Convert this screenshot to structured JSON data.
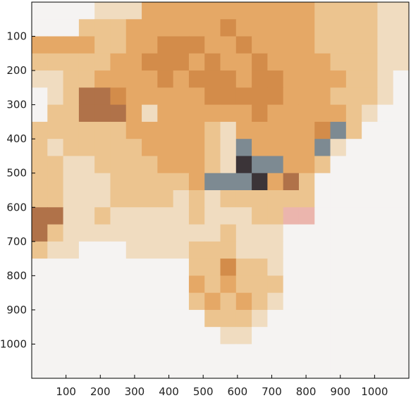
{
  "chart_data": {
    "type": "heatmap",
    "title": "",
    "xlabel": "",
    "ylabel": "",
    "xlim": [
      0,
      1100
    ],
    "ylim": [
      1100,
      0
    ],
    "grid": false,
    "x_ticks": [
      100,
      200,
      300,
      400,
      500,
      600,
      700,
      800,
      900,
      1000
    ],
    "y_ticks": [
      100,
      200,
      300,
      400,
      500,
      600,
      700,
      800,
      900,
      1000
    ],
    "x_tick_labels": [
      "100",
      "200",
      "300",
      "400",
      "500",
      "600",
      "700",
      "800",
      "900",
      "1000"
    ],
    "y_tick_labels": [
      "100",
      "200",
      "300",
      "400",
      "500",
      "600",
      "700",
      "800",
      "900",
      "1000"
    ],
    "image_description": "pixelated close-up of an orange tabby cat face on a white background",
    "palette": {
      "white": "#f5f3f2",
      "cream": "#f0dcc0",
      "light_orange": "#ecc48f",
      "orange": "#e5a866",
      "dark_orange": "#d38c4a",
      "brown": "#b07249",
      "eye_gray": "#7d8a92",
      "eye_dark": "#3b3438",
      "nose_pink": "#ebb5ad"
    },
    "cells": [
      [
        "W",
        "W",
        "W",
        "W",
        "C",
        "C",
        "C",
        "O",
        "O",
        "O",
        "O",
        "O",
        "O",
        "O",
        "O",
        "O",
        "O",
        "O",
        "L",
        "L",
        "L",
        "L",
        "C",
        "C"
      ],
      [
        "W",
        "W",
        "W",
        "L",
        "L",
        "L",
        "O",
        "O",
        "O",
        "O",
        "O",
        "O",
        "D",
        "O",
        "O",
        "O",
        "O",
        "O",
        "L",
        "L",
        "L",
        "L",
        "C",
        "C"
      ],
      [
        "O",
        "O",
        "O",
        "O",
        "L",
        "L",
        "O",
        "O",
        "D",
        "D",
        "D",
        "O",
        "O",
        "D",
        "O",
        "O",
        "O",
        "O",
        "L",
        "L",
        "L",
        "L",
        "C",
        "C"
      ],
      [
        "L",
        "L",
        "L",
        "L",
        "L",
        "O",
        "O",
        "D",
        "D",
        "D",
        "O",
        "D",
        "O",
        "O",
        "D",
        "O",
        "O",
        "O",
        "O",
        "L",
        "L",
        "L",
        "C",
        "C"
      ],
      [
        "C",
        "C",
        "L",
        "L",
        "O",
        "O",
        "O",
        "O",
        "D",
        "O",
        "D",
        "D",
        "D",
        "O",
        "D",
        "D",
        "O",
        "O",
        "O",
        "O",
        "L",
        "L",
        "C",
        "W"
      ],
      [
        "W",
        "C",
        "L",
        "B",
        "B",
        "D",
        "O",
        "O",
        "O",
        "O",
        "O",
        "D",
        "D",
        "D",
        "D",
        "D",
        "O",
        "O",
        "O",
        "L",
        "L",
        "L",
        "C",
        "W"
      ],
      [
        "W",
        "L",
        "L",
        "B",
        "B",
        "B",
        "O",
        "C",
        "O",
        "O",
        "O",
        "O",
        "O",
        "O",
        "D",
        "O",
        "O",
        "O",
        "O",
        "O",
        "L",
        "C",
        "W",
        "W"
      ],
      [
        "L",
        "L",
        "L",
        "L",
        "L",
        "L",
        "O",
        "O",
        "O",
        "O",
        "O",
        "L",
        "C",
        "O",
        "O",
        "O",
        "O",
        "O",
        "D",
        "G",
        "L",
        "W",
        "W",
        "W"
      ],
      [
        "L",
        "C",
        "L",
        "L",
        "L",
        "L",
        "L",
        "O",
        "O",
        "O",
        "O",
        "L",
        "C",
        "G",
        "O",
        "O",
        "O",
        "O",
        "G",
        "C",
        "W",
        "W",
        "W",
        "W"
      ],
      [
        "L",
        "L",
        "C",
        "C",
        "L",
        "L",
        "L",
        "L",
        "O",
        "O",
        "O",
        "L",
        "C",
        "K",
        "G",
        "G",
        "O",
        "O",
        "L",
        "W",
        "W",
        "W",
        "W",
        "W"
      ],
      [
        "L",
        "L",
        "C",
        "C",
        "C",
        "L",
        "L",
        "L",
        "L",
        "L",
        "O",
        "G",
        "G",
        "G",
        "K",
        "O",
        "B",
        "L",
        "W",
        "W",
        "W",
        "W",
        "W",
        "W"
      ],
      [
        "L",
        "L",
        "C",
        "C",
        "C",
        "L",
        "L",
        "L",
        "L",
        "C",
        "L",
        "C",
        "L",
        "L",
        "L",
        "L",
        "L",
        "L",
        "W",
        "W",
        "W",
        "W",
        "W",
        "W"
      ],
      [
        "B",
        "B",
        "C",
        "C",
        "L",
        "C",
        "C",
        "C",
        "C",
        "C",
        "L",
        "C",
        "C",
        "C",
        "L",
        "L",
        "P",
        "P",
        "W",
        "W",
        "W",
        "W",
        "W",
        "W"
      ],
      [
        "B",
        "L",
        "C",
        "C",
        "C",
        "C",
        "C",
        "C",
        "C",
        "C",
        "C",
        "C",
        "L",
        "C",
        "C",
        "C",
        "W",
        "W",
        "W",
        "W",
        "W",
        "W",
        "W",
        "W"
      ],
      [
        "L",
        "C",
        "C",
        "W",
        "W",
        "W",
        "C",
        "C",
        "C",
        "C",
        "L",
        "L",
        "L",
        "C",
        "C",
        "C",
        "W",
        "W",
        "W",
        "W",
        "W",
        "W",
        "W",
        "W"
      ],
      [
        "W",
        "W",
        "W",
        "W",
        "W",
        "W",
        "W",
        "W",
        "W",
        "W",
        "L",
        "L",
        "D",
        "L",
        "L",
        "C",
        "W",
        "W",
        "W",
        "W",
        "W",
        "W",
        "W",
        "W"
      ],
      [
        "W",
        "W",
        "W",
        "W",
        "W",
        "W",
        "W",
        "W",
        "W",
        "W",
        "O",
        "L",
        "O",
        "L",
        "L",
        "L",
        "W",
        "W",
        "W",
        "W",
        "W",
        "W",
        "W",
        "W"
      ],
      [
        "W",
        "W",
        "W",
        "W",
        "W",
        "W",
        "W",
        "W",
        "W",
        "W",
        "L",
        "O",
        "L",
        "O",
        "L",
        "C",
        "W",
        "W",
        "W",
        "W",
        "W",
        "W",
        "W",
        "W"
      ],
      [
        "W",
        "W",
        "W",
        "W",
        "W",
        "W",
        "W",
        "W",
        "W",
        "W",
        "W",
        "L",
        "L",
        "L",
        "C",
        "W",
        "W",
        "W",
        "W",
        "W",
        "W",
        "W",
        "W",
        "W"
      ],
      [
        "W",
        "W",
        "W",
        "W",
        "W",
        "W",
        "W",
        "W",
        "W",
        "W",
        "W",
        "W",
        "C",
        "C",
        "W",
        "W",
        "W",
        "W",
        "W",
        "W",
        "W",
        "W",
        "W",
        "W"
      ],
      [
        "W",
        "W",
        "W",
        "W",
        "W",
        "W",
        "W",
        "W",
        "W",
        "W",
        "W",
        "W",
        "W",
        "W",
        "W",
        "W",
        "W",
        "W",
        "W",
        "W",
        "W",
        "W",
        "W",
        "W"
      ],
      [
        "W",
        "W",
        "W",
        "W",
        "W",
        "W",
        "W",
        "W",
        "W",
        "W",
        "W",
        "W",
        "W",
        "W",
        "W",
        "W",
        "W",
        "W",
        "W",
        "W",
        "W",
        "W",
        "W",
        "W"
      ]
    ],
    "legend": {
      "W": "white",
      "C": "cream",
      "L": "light_orange",
      "O": "orange",
      "D": "dark_orange",
      "B": "brown",
      "G": "eye_gray",
      "K": "eye_dark",
      "P": "nose_pink"
    }
  }
}
